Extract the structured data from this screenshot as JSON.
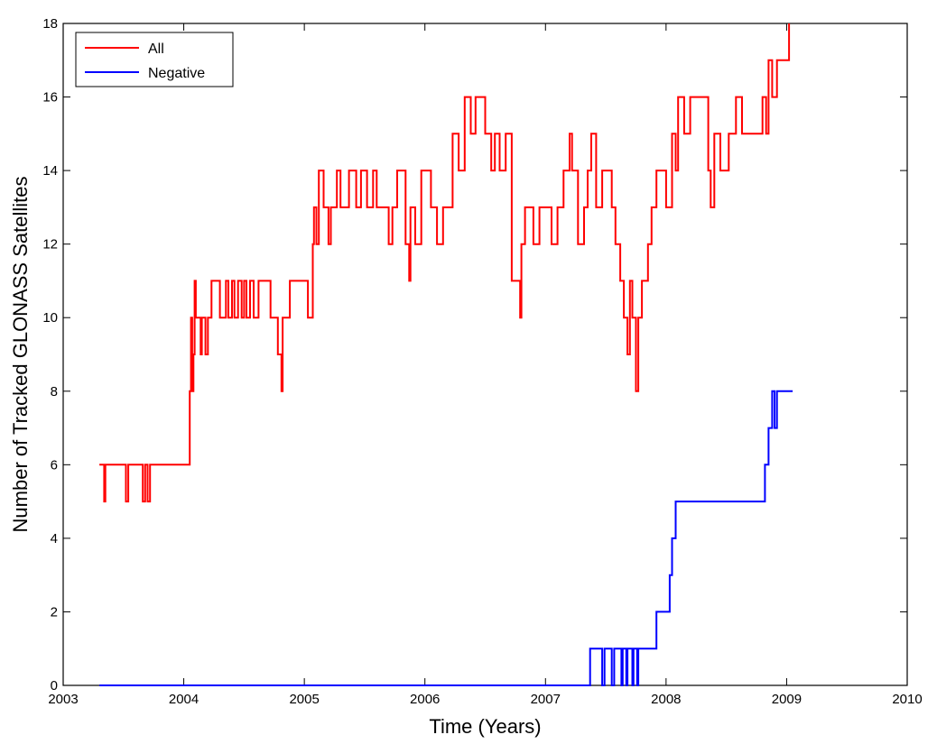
{
  "chart_data": {
    "type": "line",
    "title": "",
    "xlabel": "Time (Years)",
    "ylabel": "Number of Tracked GLONASS Satellites",
    "xlim": [
      2003,
      2010
    ],
    "ylim": [
      0,
      18
    ],
    "xticks": [
      "2003",
      "2004",
      "2005",
      "2006",
      "2007",
      "2008",
      "2009",
      "2010"
    ],
    "yticks": [
      "0",
      "2",
      "4",
      "6",
      "8",
      "10",
      "12",
      "14",
      "16",
      "18"
    ],
    "grid": false,
    "legend_position": "top-left",
    "series": [
      {
        "name": "All",
        "color": "#ff0000",
        "step": true,
        "points": [
          [
            2003.3,
            6
          ],
          [
            2003.34,
            5
          ],
          [
            2003.35,
            6
          ],
          [
            2003.52,
            5
          ],
          [
            2003.54,
            6
          ],
          [
            2003.66,
            5
          ],
          [
            2003.68,
            6
          ],
          [
            2003.7,
            5
          ],
          [
            2003.72,
            6
          ],
          [
            2004.05,
            8
          ],
          [
            2004.06,
            10
          ],
          [
            2004.07,
            8
          ],
          [
            2004.08,
            9
          ],
          [
            2004.09,
            11
          ],
          [
            2004.1,
            10
          ],
          [
            2004.14,
            9
          ],
          [
            2004.15,
            10
          ],
          [
            2004.18,
            9
          ],
          [
            2004.2,
            10
          ],
          [
            2004.23,
            11
          ],
          [
            2004.3,
            10
          ],
          [
            2004.35,
            11
          ],
          [
            2004.37,
            10
          ],
          [
            2004.4,
            11
          ],
          [
            2004.42,
            10
          ],
          [
            2004.45,
            11
          ],
          [
            2004.48,
            10
          ],
          [
            2004.5,
            11
          ],
          [
            2004.52,
            10
          ],
          [
            2004.55,
            11
          ],
          [
            2004.58,
            10
          ],
          [
            2004.62,
            11
          ],
          [
            2004.72,
            10
          ],
          [
            2004.78,
            9
          ],
          [
            2004.81,
            8
          ],
          [
            2004.82,
            10
          ],
          [
            2004.88,
            11
          ],
          [
            2005.03,
            10
          ],
          [
            2005.07,
            12
          ],
          [
            2005.08,
            13
          ],
          [
            2005.1,
            12
          ],
          [
            2005.12,
            14
          ],
          [
            2005.16,
            13
          ],
          [
            2005.2,
            12
          ],
          [
            2005.22,
            13
          ],
          [
            2005.27,
            14
          ],
          [
            2005.3,
            13
          ],
          [
            2005.37,
            14
          ],
          [
            2005.43,
            13
          ],
          [
            2005.47,
            14
          ],
          [
            2005.52,
            13
          ],
          [
            2005.57,
            14
          ],
          [
            2005.6,
            13
          ],
          [
            2005.7,
            12
          ],
          [
            2005.73,
            13
          ],
          [
            2005.77,
            14
          ],
          [
            2005.84,
            12
          ],
          [
            2005.87,
            11
          ],
          [
            2005.88,
            13
          ],
          [
            2005.92,
            12
          ],
          [
            2005.97,
            14
          ],
          [
            2006.05,
            13
          ],
          [
            2006.1,
            12
          ],
          [
            2006.15,
            13
          ],
          [
            2006.23,
            15
          ],
          [
            2006.28,
            14
          ],
          [
            2006.33,
            16
          ],
          [
            2006.38,
            15
          ],
          [
            2006.42,
            16
          ],
          [
            2006.5,
            15
          ],
          [
            2006.55,
            14
          ],
          [
            2006.58,
            15
          ],
          [
            2006.62,
            14
          ],
          [
            2006.67,
            15
          ],
          [
            2006.72,
            11
          ],
          [
            2006.79,
            10
          ],
          [
            2006.8,
            12
          ],
          [
            2006.83,
            13
          ],
          [
            2006.9,
            12
          ],
          [
            2006.95,
            13
          ],
          [
            2007.05,
            12
          ],
          [
            2007.1,
            13
          ],
          [
            2007.15,
            14
          ],
          [
            2007.2,
            15
          ],
          [
            2007.22,
            14
          ],
          [
            2007.27,
            12
          ],
          [
            2007.32,
            13
          ],
          [
            2007.35,
            14
          ],
          [
            2007.38,
            15
          ],
          [
            2007.42,
            13
          ],
          [
            2007.47,
            14
          ],
          [
            2007.55,
            13
          ],
          [
            2007.58,
            12
          ],
          [
            2007.62,
            11
          ],
          [
            2007.65,
            10
          ],
          [
            2007.68,
            9
          ],
          [
            2007.7,
            11
          ],
          [
            2007.72,
            10
          ],
          [
            2007.75,
            8
          ],
          [
            2007.77,
            10
          ],
          [
            2007.8,
            11
          ],
          [
            2007.85,
            12
          ],
          [
            2007.88,
            13
          ],
          [
            2007.92,
            14
          ],
          [
            2008.0,
            13
          ],
          [
            2008.05,
            15
          ],
          [
            2008.08,
            14
          ],
          [
            2008.1,
            16
          ],
          [
            2008.15,
            15
          ],
          [
            2008.2,
            16
          ],
          [
            2008.27,
            16
          ],
          [
            2008.35,
            14
          ],
          [
            2008.37,
            13
          ],
          [
            2008.4,
            15
          ],
          [
            2008.45,
            14
          ],
          [
            2008.52,
            15
          ],
          [
            2008.58,
            16
          ],
          [
            2008.63,
            15
          ],
          [
            2008.7,
            15
          ],
          [
            2008.8,
            16
          ],
          [
            2008.83,
            15
          ],
          [
            2008.85,
            17
          ],
          [
            2008.88,
            16
          ],
          [
            2008.92,
            17
          ],
          [
            2009.02,
            18
          ]
        ]
      },
      {
        "name": "Negative",
        "color": "#0000ff",
        "step": true,
        "points": [
          [
            2003.3,
            0
          ],
          [
            2007.37,
            1
          ],
          [
            2007.47,
            0
          ],
          [
            2007.49,
            1
          ],
          [
            2007.55,
            0
          ],
          [
            2007.57,
            1
          ],
          [
            2007.63,
            0
          ],
          [
            2007.64,
            1
          ],
          [
            2007.67,
            0
          ],
          [
            2007.68,
            1
          ],
          [
            2007.72,
            0
          ],
          [
            2007.73,
            1
          ],
          [
            2007.76,
            0
          ],
          [
            2007.77,
            1
          ],
          [
            2007.92,
            2
          ],
          [
            2008.03,
            3
          ],
          [
            2008.05,
            4
          ],
          [
            2008.08,
            5
          ],
          [
            2008.82,
            6
          ],
          [
            2008.85,
            7
          ],
          [
            2008.88,
            8
          ],
          [
            2008.9,
            7
          ],
          [
            2008.92,
            8
          ],
          [
            2009.05,
            8
          ]
        ]
      }
    ]
  }
}
